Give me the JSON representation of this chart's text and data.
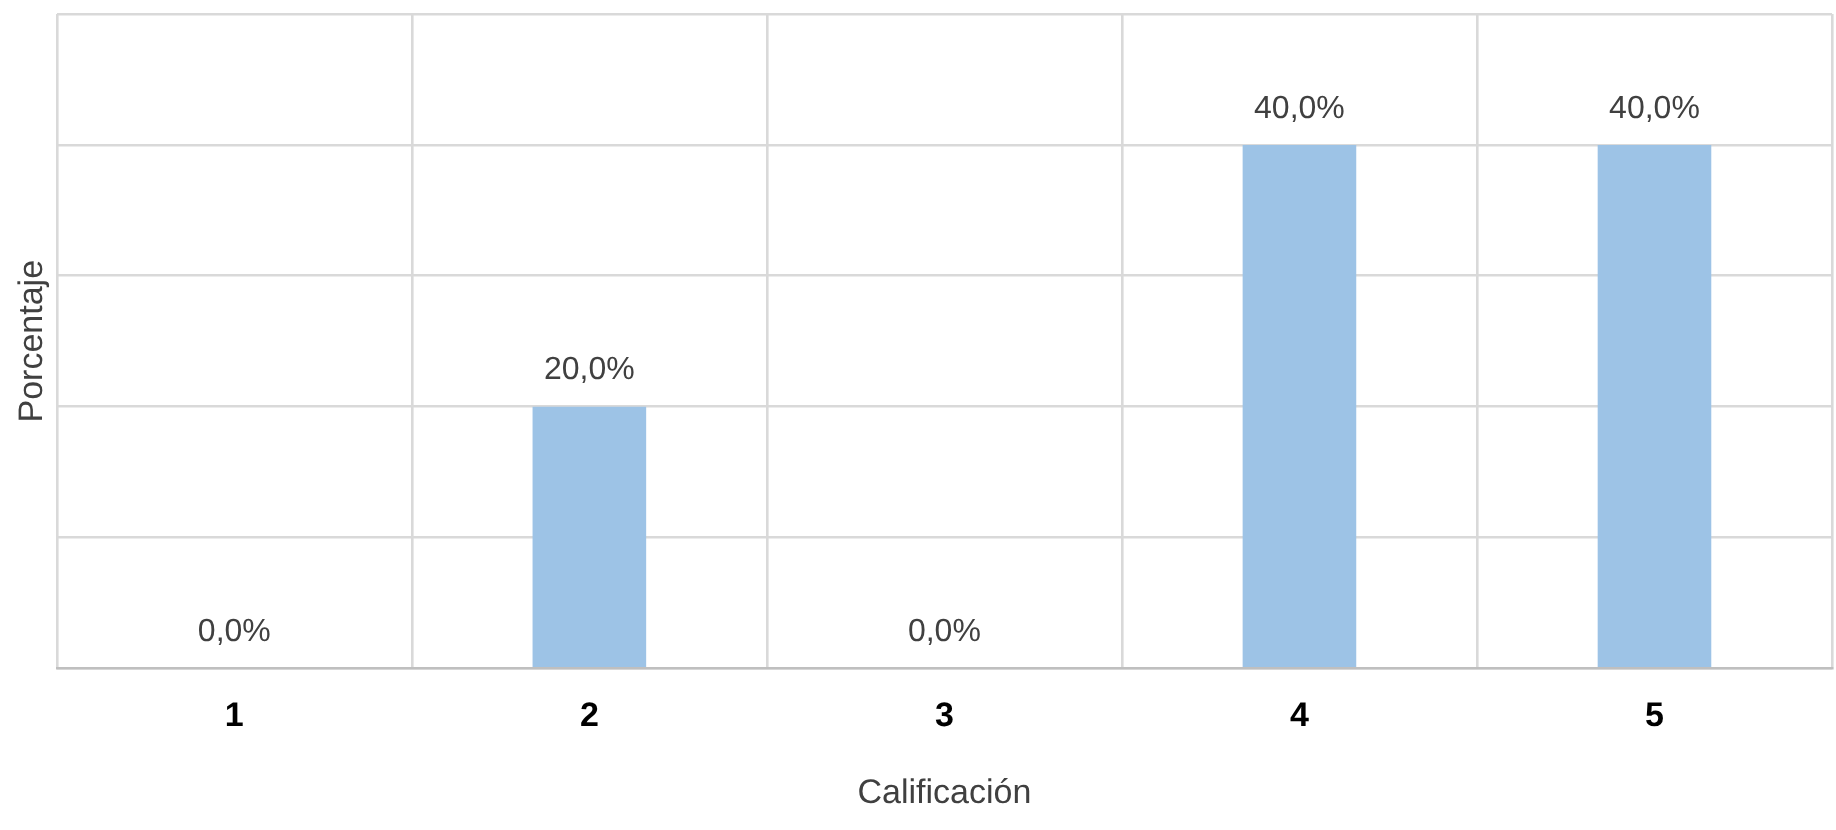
{
  "chart_data": {
    "type": "bar",
    "xlabel": "Calificación",
    "ylabel": "Porcentaje",
    "categories": [
      "1",
      "2",
      "3",
      "4",
      "5"
    ],
    "values": [
      0,
      20,
      0,
      40,
      40
    ],
    "value_labels": [
      "0,0%",
      "20,0%",
      "0,0%",
      "40,0%",
      "40,0%"
    ],
    "color": "#9dc3e6",
    "ylim": [
      0,
      50
    ],
    "yticks": [
      {
        "value": 0,
        "label": null
      },
      {
        "value": 10,
        "label": null
      },
      {
        "value": 20,
        "label": null
      },
      {
        "value": 30,
        "label": null
      },
      {
        "value": 40,
        "label": null
      },
      {
        "value": 50,
        "label": null
      }
    ],
    "tick_labels": "x",
    "grid": true,
    "legend": false
  }
}
